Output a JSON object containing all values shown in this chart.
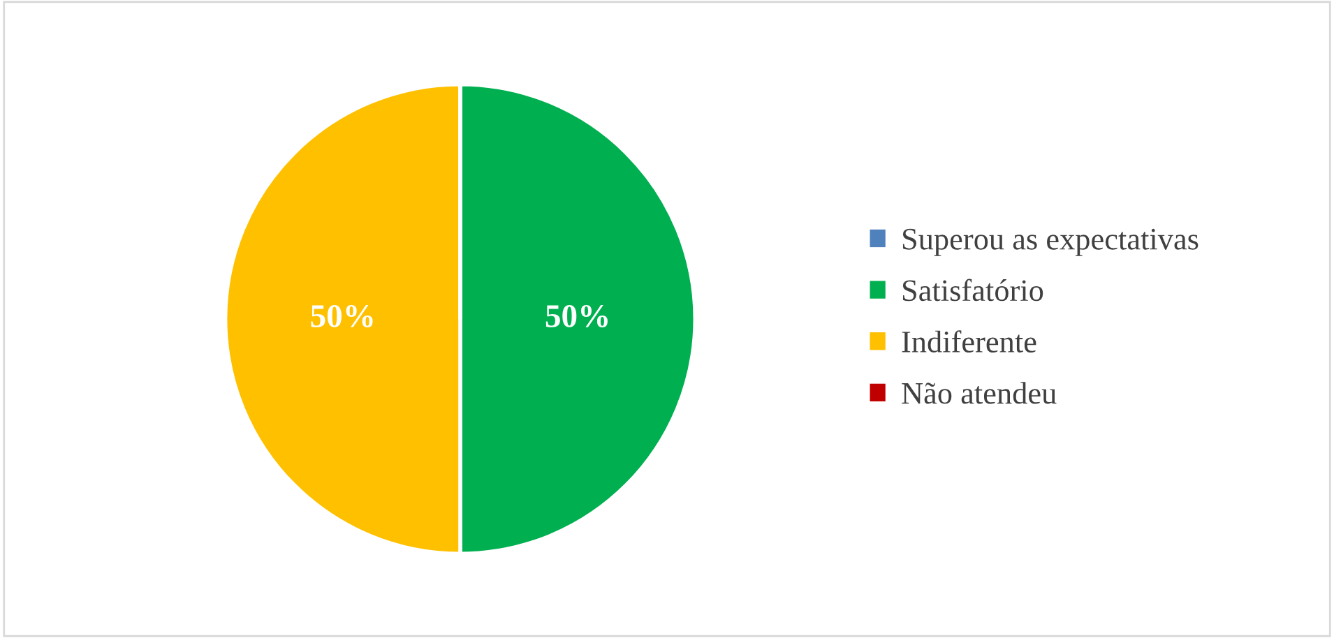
{
  "chart_data": {
    "type": "pie",
    "categories": [
      "Superou as expectativas",
      "Satisfatório",
      "Indiferente",
      "Não atendeu"
    ],
    "values": [
      0,
      50,
      50,
      0
    ],
    "colors": [
      "#4f81bd",
      "#00b050",
      "#ffc000",
      "#c00000"
    ],
    "value_labels": [
      null,
      "50%",
      "50%",
      null
    ],
    "legend": "right"
  }
}
